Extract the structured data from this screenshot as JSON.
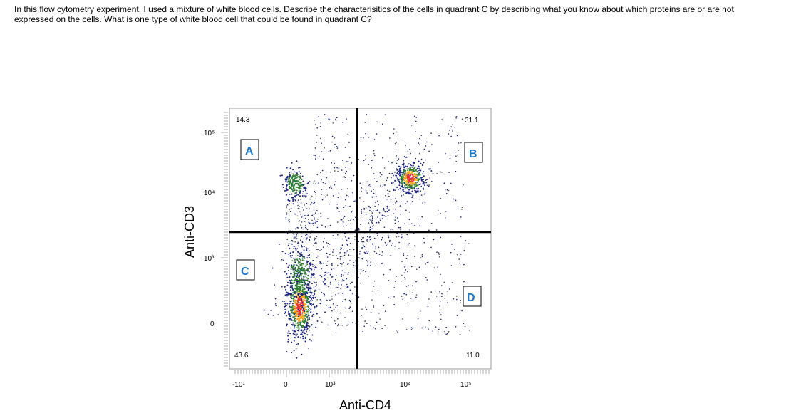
{
  "question": {
    "line1": "In this flow cytometry experiment, I used a mixture of white blood cells.  Describe the characterisitics of the cells in quadrant C by describing what you know about which proteins are or are not",
    "line2": "expressed on the cells.  What is one type of white blood cell that could be found in quadrant C?"
  },
  "chart_data": {
    "type": "scatter",
    "xlabel": "Anti-CD4",
    "ylabel": "Anti-CD3",
    "x_ticks": [
      "-10¹",
      "0",
      "10³",
      "10⁴",
      "10⁵"
    ],
    "y_ticks": [
      "10⁵",
      "10⁴",
      "10³",
      "0"
    ],
    "x_scale": "biexponential",
    "y_scale": "biexponential",
    "quadrants": [
      {
        "label": "A",
        "percent": "14.3",
        "position": "top-left"
      },
      {
        "label": "B",
        "percent": "31.1",
        "position": "top-right"
      },
      {
        "label": "C",
        "percent": "43.6",
        "position": "bottom-left"
      },
      {
        "label": "D",
        "percent": "11.0",
        "position": "bottom-right"
      }
    ],
    "populations": [
      {
        "quadrant": "C",
        "description": "CD3- CD4- dense cluster",
        "density": "high"
      },
      {
        "quadrant": "B",
        "description": "CD3+ CD4+ dense cluster",
        "density": "high"
      },
      {
        "quadrant": "A",
        "description": "CD3+ CD4- cluster",
        "density": "medium"
      },
      {
        "quadrant": "D",
        "description": "CD3- CD4+ scattered events",
        "density": "low"
      }
    ],
    "colors": {
      "low": "#1a237e",
      "mid": "#2e7d32",
      "high_mid": "#f9a825",
      "high": "#e53935"
    }
  }
}
